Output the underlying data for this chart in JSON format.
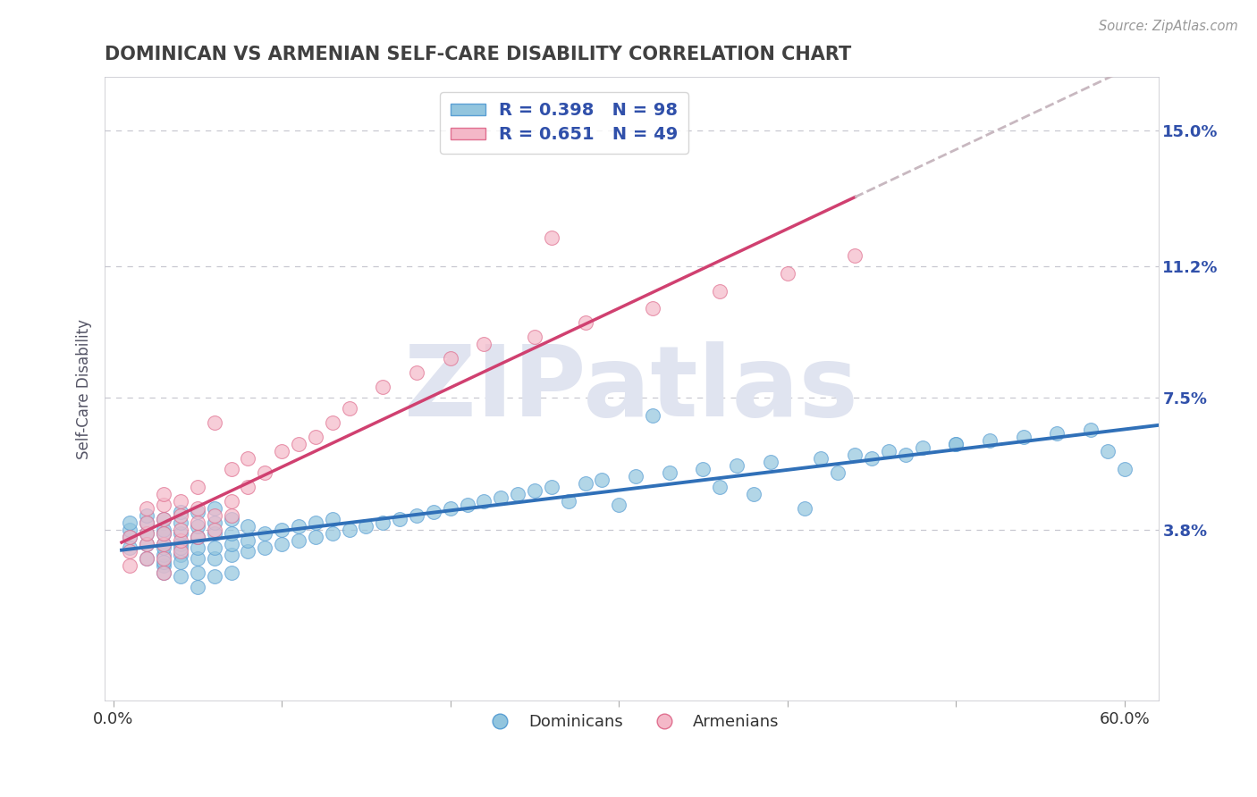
{
  "title": "DOMINICAN VS ARMENIAN SELF-CARE DISABILITY CORRELATION CHART",
  "source": "Source: ZipAtlas.com",
  "ylabel": "Self-Care Disability",
  "xlim": [
    -0.005,
    0.62
  ],
  "ylim": [
    -0.01,
    0.165
  ],
  "yticks": [
    0.038,
    0.075,
    0.112,
    0.15
  ],
  "ytick_labels": [
    "3.8%",
    "7.5%",
    "11.2%",
    "15.0%"
  ],
  "xticks": [
    0.0,
    0.6
  ],
  "xtick_labels": [
    "0.0%",
    "60.0%"
  ],
  "dominican_R": 0.398,
  "dominican_N": 98,
  "armenian_R": 0.651,
  "armenian_N": 49,
  "dominican_color": "#92c5de",
  "dominican_edge": "#5a9fd4",
  "armenian_color": "#f4b8c8",
  "armenian_edge": "#e07090",
  "trend_dominican_color": "#3070b8",
  "trend_armenian_color": "#d04070",
  "trend_dashed_color": "#c8b8c0",
  "background_color": "#ffffff",
  "grid_color": "#c8c8d0",
  "title_color": "#404040",
  "axis_label_color": "#3050aa",
  "watermark_color": "#e0e4f0",
  "dominican_x": [
    0.01,
    0.01,
    0.01,
    0.01,
    0.02,
    0.02,
    0.02,
    0.02,
    0.02,
    0.03,
    0.03,
    0.03,
    0.03,
    0.03,
    0.03,
    0.03,
    0.03,
    0.03,
    0.04,
    0.04,
    0.04,
    0.04,
    0.04,
    0.04,
    0.04,
    0.04,
    0.05,
    0.05,
    0.05,
    0.05,
    0.05,
    0.05,
    0.05,
    0.06,
    0.06,
    0.06,
    0.06,
    0.06,
    0.06,
    0.07,
    0.07,
    0.07,
    0.07,
    0.07,
    0.08,
    0.08,
    0.08,
    0.09,
    0.09,
    0.1,
    0.1,
    0.11,
    0.11,
    0.12,
    0.12,
    0.13,
    0.13,
    0.14,
    0.15,
    0.16,
    0.17,
    0.18,
    0.19,
    0.2,
    0.21,
    0.22,
    0.23,
    0.24,
    0.25,
    0.26,
    0.28,
    0.29,
    0.31,
    0.33,
    0.35,
    0.37,
    0.39,
    0.42,
    0.44,
    0.46,
    0.48,
    0.5,
    0.52,
    0.54,
    0.56,
    0.58,
    0.59,
    0.6,
    0.32,
    0.38,
    0.27,
    0.45,
    0.5,
    0.41,
    0.36,
    0.3,
    0.43,
    0.47
  ],
  "dominican_y": [
    0.036,
    0.038,
    0.033,
    0.04,
    0.034,
    0.037,
    0.04,
    0.03,
    0.042,
    0.028,
    0.031,
    0.034,
    0.037,
    0.041,
    0.026,
    0.033,
    0.038,
    0.029,
    0.031,
    0.034,
    0.037,
    0.04,
    0.025,
    0.043,
    0.029,
    0.033,
    0.03,
    0.033,
    0.036,
    0.039,
    0.026,
    0.043,
    0.022,
    0.03,
    0.033,
    0.037,
    0.04,
    0.025,
    0.044,
    0.031,
    0.034,
    0.037,
    0.026,
    0.041,
    0.032,
    0.035,
    0.039,
    0.033,
    0.037,
    0.034,
    0.038,
    0.035,
    0.039,
    0.036,
    0.04,
    0.037,
    0.041,
    0.038,
    0.039,
    0.04,
    0.041,
    0.042,
    0.043,
    0.044,
    0.045,
    0.046,
    0.047,
    0.048,
    0.049,
    0.05,
    0.051,
    0.052,
    0.053,
    0.054,
    0.055,
    0.056,
    0.057,
    0.058,
    0.059,
    0.06,
    0.061,
    0.062,
    0.063,
    0.064,
    0.065,
    0.066,
    0.06,
    0.055,
    0.07,
    0.048,
    0.046,
    0.058,
    0.062,
    0.044,
    0.05,
    0.045,
    0.054,
    0.059
  ],
  "armenian_x": [
    0.01,
    0.01,
    0.01,
    0.02,
    0.02,
    0.02,
    0.02,
    0.02,
    0.03,
    0.03,
    0.03,
    0.03,
    0.03,
    0.03,
    0.03,
    0.04,
    0.04,
    0.04,
    0.04,
    0.04,
    0.05,
    0.05,
    0.05,
    0.05,
    0.06,
    0.06,
    0.06,
    0.07,
    0.07,
    0.07,
    0.08,
    0.08,
    0.09,
    0.1,
    0.11,
    0.12,
    0.13,
    0.14,
    0.16,
    0.18,
    0.2,
    0.22,
    0.25,
    0.28,
    0.32,
    0.36,
    0.4,
    0.44,
    0.26
  ],
  "armenian_y": [
    0.028,
    0.032,
    0.036,
    0.03,
    0.034,
    0.037,
    0.04,
    0.044,
    0.03,
    0.034,
    0.037,
    0.041,
    0.045,
    0.026,
    0.048,
    0.032,
    0.035,
    0.038,
    0.042,
    0.046,
    0.036,
    0.04,
    0.044,
    0.05,
    0.038,
    0.042,
    0.068,
    0.042,
    0.046,
    0.055,
    0.05,
    0.058,
    0.054,
    0.06,
    0.062,
    0.064,
    0.068,
    0.072,
    0.078,
    0.082,
    0.086,
    0.09,
    0.092,
    0.096,
    0.1,
    0.105,
    0.11,
    0.115,
    0.12
  ],
  "arm_trend_x_start": 0.005,
  "arm_trend_x_solid_end": 0.44,
  "arm_trend_x_dash_end": 0.62,
  "dom_trend_x_start": 0.005,
  "dom_trend_x_end": 0.62
}
